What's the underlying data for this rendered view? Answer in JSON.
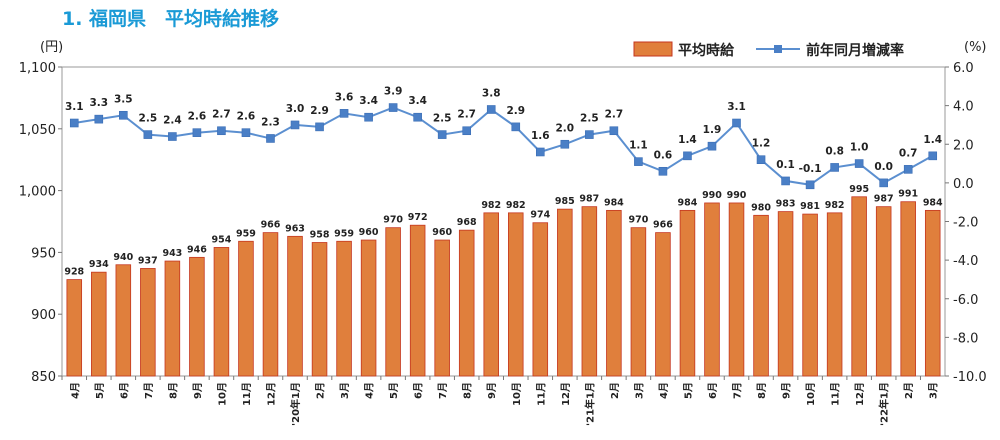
{
  "title": "1.  福岡県　平均時給推移",
  "colors": {
    "title": "#1a9ad6",
    "bar": "#e07f3c",
    "bar_edge": "#c5361f",
    "line": "#5b8fd0",
    "marker": "#4a7fc6"
  },
  "chart_data": {
    "type": "bar+line",
    "categories": [
      "4月",
      "5月",
      "6月",
      "7月",
      "8月",
      "9月",
      "10月",
      "11月",
      "12月",
      "'20年1月",
      "2月",
      "3月",
      "4月",
      "5月",
      "6月",
      "7月",
      "8月",
      "9月",
      "10月",
      "11月",
      "12月",
      "'21年1月",
      "2月",
      "3月",
      "4月",
      "5月",
      "6月",
      "7月",
      "8月",
      "9月",
      "10月",
      "11月",
      "12月",
      "'22年1月",
      "2月",
      "3月"
    ],
    "series": [
      {
        "name": "平均時給",
        "type": "bar",
        "axis": "left",
        "values": [
          928,
          934,
          940,
          937,
          943,
          946,
          954,
          959,
          966,
          963,
          958,
          959,
          960,
          970,
          972,
          960,
          968,
          982,
          982,
          974,
          985,
          987,
          984,
          970,
          966,
          984,
          990,
          990,
          980,
          983,
          981,
          982,
          995,
          987,
          991,
          984
        ],
        "labels": [
          "928",
          "934",
          "940",
          "937",
          "943",
          "946",
          "954",
          "959",
          "966",
          "963",
          "958",
          "959",
          "960",
          "970",
          "972",
          "960",
          "968",
          "982",
          "982",
          "974",
          "985",
          "987",
          "984",
          "970",
          "966",
          "984",
          "990",
          "990",
          "980",
          "983",
          "981",
          "982",
          "995",
          "987",
          "991",
          "984"
        ]
      },
      {
        "name": "前年同月増減率",
        "type": "line",
        "axis": "right",
        "values": [
          3.1,
          3.3,
          3.5,
          2.5,
          2.4,
          2.6,
          2.7,
          2.6,
          2.3,
          3.0,
          2.9,
          3.6,
          3.4,
          3.9,
          3.4,
          2.5,
          2.7,
          3.8,
          2.9,
          1.6,
          2.0,
          2.5,
          2.7,
          1.1,
          0.6,
          1.4,
          1.9,
          3.1,
          1.2,
          0.1,
          -0.1,
          0.8,
          1.0,
          0.0,
          0.7,
          1.4
        ],
        "labels": [
          "3.1",
          "3.3",
          "3.5",
          "2.5",
          "2.4",
          "2.6",
          "2.7",
          "2.6",
          "2.3",
          "3.0",
          "2.9",
          "3.6",
          "3.4",
          "3.9",
          "3.4",
          "2.5",
          "2.7",
          "3.8",
          "2.9",
          "1.6",
          "2.0",
          "2.5",
          "2.7",
          "1.1",
          "0.6",
          "1.4",
          "1.9",
          "3.1",
          "1.2",
          "0.1",
          "-0.1",
          "0.8",
          "1.0",
          "0.0",
          "0.7",
          "1.4"
        ]
      }
    ],
    "y_left": {
      "unit": "(円)",
      "min": 850,
      "max": 1100,
      "ticks": [
        850,
        900,
        950,
        1000,
        1050,
        1100
      ],
      "tick_labels": [
        "850",
        "900",
        "950",
        "1,000",
        "1,050",
        "1,100"
      ]
    },
    "y_right": {
      "unit": "(%)",
      "min": -10,
      "max": 6,
      "ticks": [
        -10,
        -8,
        -6,
        -4,
        -2,
        0,
        2,
        4,
        6
      ],
      "tick_labels": [
        "-10.0",
        "-8.0",
        "-6.0",
        "-4.0",
        "-2.0",
        "0.0",
        "2.0",
        "4.0",
        "6.0"
      ]
    },
    "legend": {
      "position": "top-right",
      "entries": [
        "平均時給",
        "前年同月増減率"
      ]
    }
  }
}
